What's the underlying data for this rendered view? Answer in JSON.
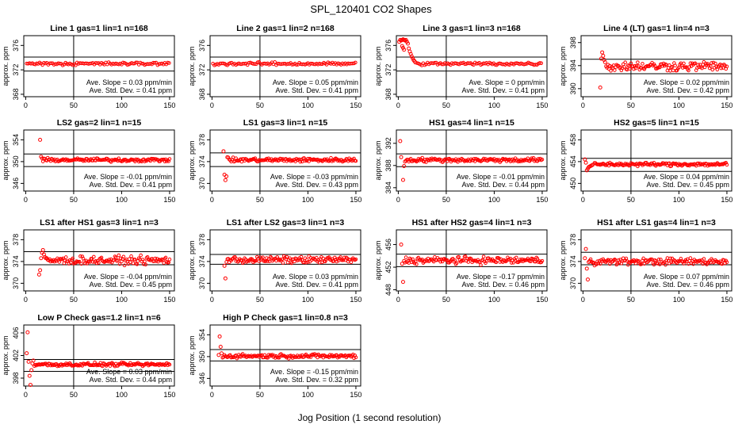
{
  "figure": {
    "title": "SPL_120401  CO2 Shapes",
    "xlabel": "Jog Position (1 second resolution)",
    "point_color": "#ff0000",
    "axis_color": "#000000"
  },
  "chart_data": [
    {
      "type": "scatter",
      "title": "Line 1 gas=1 lin=1 n=168",
      "ylabel": "approx. ppm",
      "xlim": [
        -2,
        155
      ],
      "xticks": [
        0,
        50,
        100,
        150
      ],
      "ylim": [
        367.6,
        377.6
      ],
      "yticks": [
        368,
        372,
        376
      ],
      "hlines": [
        371.8,
        374.1
      ],
      "vline": 50,
      "slope_text": "Ave. Slope =  0.03  ppm/min",
      "sd_text": "Ave. Std. Dev. =  0.41  ppm",
      "trace": {
        "x0": 1,
        "x1": 150,
        "step": 1.5,
        "base": 373.0,
        "noise": 0.12
      },
      "extra_points": []
    },
    {
      "type": "scatter",
      "title": "Line 2 gas=1 lin=2 n=168",
      "ylabel": "approx. ppm",
      "xlim": [
        -2,
        155
      ],
      "xticks": [
        0,
        50,
        100,
        150
      ],
      "ylim": [
        367.6,
        377.6
      ],
      "yticks": [
        368,
        372,
        376
      ],
      "hlines": [
        371.8,
        374.1
      ],
      "vline": 50,
      "slope_text": "Ave. Slope =  0.05  ppm/min",
      "sd_text": "Ave. Std. Dev. =  0.41  ppm",
      "trace": {
        "x0": 1,
        "x1": 150,
        "step": 1.5,
        "base": 373.0,
        "noise": 0.12
      },
      "extra_points": []
    },
    {
      "type": "scatter",
      "title": "Line 3 gas=1 lin=3 n=168",
      "ylabel": "approx. ppm",
      "xlim": [
        -2,
        155
      ],
      "xticks": [
        0,
        50,
        100,
        150
      ],
      "ylim": [
        367.6,
        377.6
      ],
      "yticks": [
        368,
        372,
        376
      ],
      "hlines": [
        371.8,
        374.1
      ],
      "vline": 50,
      "slope_text": "Ave. Slope =  0  ppm/min",
      "sd_text": "Ave. Std. Dev. =  0.41  ppm",
      "trace": {
        "x0": 20,
        "x1": 150,
        "step": 1.5,
        "base": 373.0,
        "noise": 0.12
      },
      "extra_points": [
        [
          1,
          376.6
        ],
        [
          2,
          376.9
        ],
        [
          3,
          376.8
        ],
        [
          4,
          376.9
        ],
        [
          5,
          377.0
        ],
        [
          6,
          376.9
        ],
        [
          7,
          376.8
        ],
        [
          8,
          376.9
        ],
        [
          9,
          376.6
        ],
        [
          10,
          376.3
        ],
        [
          4,
          375.9
        ],
        [
          5,
          375.6
        ],
        [
          6,
          375.3
        ],
        [
          11,
          375.5
        ],
        [
          12,
          375.0
        ],
        [
          13,
          374.6
        ],
        [
          14,
          374.2
        ],
        [
          15,
          373.9
        ],
        [
          16,
          373.6
        ],
        [
          17,
          373.4
        ],
        [
          18,
          373.2
        ]
      ]
    },
    {
      "type": "scatter",
      "title": "Line 4 (LT) gas=1 lin=4 n=3",
      "ylabel": "approx. ppm",
      "xlim": [
        -2,
        155
      ],
      "xticks": [
        0,
        50,
        100,
        150
      ],
      "ylim": [
        388.6,
        399.2
      ],
      "yticks": [
        390,
        394,
        398
      ],
      "hlines": [
        392.6,
        395.1
      ],
      "vline": 50,
      "slope_text": "Ave. Slope =  0.02  ppm/min",
      "sd_text": "Ave. Std. Dev. =  0.42  ppm",
      "trace": {
        "x0": 24,
        "x1": 150,
        "step": 1.0,
        "base": 393.9,
        "noise": 0.4
      },
      "extra_points": [
        [
          18,
          390.2
        ],
        [
          20,
          396.3
        ],
        [
          21,
          395.7
        ],
        [
          22,
          395.0
        ],
        [
          23,
          394.6
        ],
        [
          19,
          395.2
        ]
      ]
    },
    {
      "type": "scatter",
      "title": "LS2 gas=2 lin=1 n=15",
      "ylabel": "approx. ppm",
      "xlim": [
        -2,
        155
      ],
      "xticks": [
        0,
        50,
        100,
        150
      ],
      "ylim": [
        344.6,
        355.8
      ],
      "yticks": [
        346,
        350,
        354
      ],
      "hlines": [
        349.1,
        351.4
      ],
      "vline": 50,
      "slope_text": "Ave. Slope =  -0.01  ppm/min",
      "sd_text": "Ave. Std. Dev. =  0.41  ppm",
      "trace": {
        "x0": 17,
        "x1": 150,
        "step": 1.0,
        "base": 350.3,
        "noise": 0.16
      },
      "extra_points": [
        [
          15,
          354.0
        ],
        [
          16,
          350.9
        ]
      ]
    },
    {
      "type": "scatter",
      "title": "LS1 gas=3 lin=1 n=15",
      "ylabel": "approx. ppm",
      "xlim": [
        -2,
        155
      ],
      "xticks": [
        0,
        50,
        100,
        150
      ],
      "ylim": [
        368.6,
        379.8
      ],
      "yticks": [
        370,
        374,
        378
      ],
      "hlines": [
        373.1,
        375.6
      ],
      "vline": 50,
      "slope_text": "Ave. Slope =  -0.03  ppm/min",
      "sd_text": "Ave. Std. Dev. =  0.43  ppm",
      "trace": {
        "x0": 17,
        "x1": 150,
        "step": 1.0,
        "base": 374.3,
        "noise": 0.18
      },
      "extra_points": [
        [
          12,
          375.9
        ],
        [
          13,
          371.6
        ],
        [
          14,
          370.6
        ],
        [
          15,
          371.3
        ],
        [
          16,
          374.8
        ]
      ]
    },
    {
      "type": "scatter",
      "title": "HS1 gas=4 lin=1 n=15",
      "ylabel": "approx. ppm",
      "xlim": [
        -2,
        155
      ],
      "xticks": [
        0,
        50,
        100,
        150
      ],
      "ylim": [
        383.4,
        394.4
      ],
      "yticks": [
        384,
        388,
        392
      ],
      "hlines": [
        387.8,
        390.1
      ],
      "vline": 50,
      "slope_text": "Ave. Slope =  -0.01  ppm/min",
      "sd_text": "Ave. Std. Dev. =  0.44  ppm",
      "trace": {
        "x0": 8,
        "x1": 150,
        "step": 1.0,
        "base": 389.0,
        "noise": 0.18
      },
      "extra_points": [
        [
          2,
          392.4
        ],
        [
          3,
          389.5
        ],
        [
          5,
          385.4
        ],
        [
          6,
          387.9
        ],
        [
          7,
          388.7
        ]
      ]
    },
    {
      "type": "scatter",
      "title": "HS2 gas=5 lin=1 n=15",
      "ylabel": "approx. ppm",
      "xlim": [
        -2,
        155
      ],
      "xticks": [
        0,
        50,
        100,
        150
      ],
      "ylim": [
        448.6,
        459.8
      ],
      "yticks": [
        450,
        454,
        458
      ],
      "hlines": [
        452.2,
        454.6
      ],
      "vline": 50,
      "slope_text": "Ave. Slope =  0.04  ppm/min",
      "sd_text": "Ave. Std. Dev. =  0.45  ppm",
      "trace": {
        "x0": 12,
        "x1": 150,
        "step": 1.0,
        "base": 453.5,
        "noise": 0.16
      },
      "extra_points": [
        [
          2,
          454.4
        ],
        [
          3,
          453.8
        ],
        [
          4,
          452.4
        ],
        [
          5,
          452.7
        ],
        [
          6,
          453.0
        ],
        [
          7,
          453.1
        ],
        [
          8,
          453.2
        ],
        [
          9,
          453.3
        ],
        [
          10,
          453.4
        ]
      ]
    },
    {
      "type": "scatter",
      "title": "LS1 after HS1 gas=3 lin=1 n=3",
      "ylabel": "approx. ppm",
      "xlim": [
        -2,
        155
      ],
      "xticks": [
        0,
        50,
        100,
        150
      ],
      "ylim": [
        368.6,
        379.8
      ],
      "yticks": [
        370,
        374,
        378
      ],
      "hlines": [
        373.4,
        375.8
      ],
      "vline": 50,
      "slope_text": "Ave. Slope =  -0.04  ppm/min",
      "sd_text": "Ave. Std. Dev. =  0.45  ppm",
      "trace": {
        "x0": 22,
        "x1": 150,
        "step": 1.0,
        "base": 374.2,
        "noise": 0.35
      },
      "extra_points": [
        [
          14,
          371.6
        ],
        [
          15,
          372.4
        ],
        [
          16,
          374.6
        ],
        [
          17,
          375.6
        ],
        [
          18,
          376.1
        ],
        [
          19,
          375.3
        ],
        [
          20,
          374.8
        ],
        [
          21,
          374.6
        ]
      ]
    },
    {
      "type": "scatter",
      "title": "LS1 after LS2 gas=3 lin=1 n=3",
      "ylabel": "approx. ppm",
      "xlim": [
        -2,
        155
      ],
      "xticks": [
        0,
        50,
        100,
        150
      ],
      "ylim": [
        368.6,
        379.8
      ],
      "yticks": [
        370,
        374,
        378
      ],
      "hlines": [
        373.5,
        375.3
      ],
      "vline": 50,
      "slope_text": "Ave. Slope =  0.03  ppm/min",
      "sd_text": "Ave. Std. Dev. =  0.41  ppm",
      "trace": {
        "x0": 15,
        "x1": 150,
        "step": 1.0,
        "base": 374.3,
        "noise": 0.3
      },
      "extra_points": [
        [
          14,
          370.9
        ],
        [
          13,
          373.2
        ]
      ]
    },
    {
      "type": "scatter",
      "title": "HS1 after HS2 gas=4 lin=1 n=3",
      "ylabel": "approx. ppm",
      "xlim": [
        -2,
        155
      ],
      "xticks": [
        0,
        50,
        100,
        150
      ],
      "ylim": [
        447.8,
        458.6
      ],
      "yticks": [
        448,
        452,
        456
      ],
      "hlines": [
        452.1,
        454.3
      ],
      "vline": 50,
      "slope_text": "Ave. Slope =  -0.17  ppm/min",
      "sd_text": "Ave. Std. Dev. =  0.46  ppm",
      "trace": {
        "x0": 7,
        "x1": 150,
        "step": 1.0,
        "base": 453.2,
        "noise": 0.3
      },
      "extra_points": [
        [
          3,
          456.0
        ],
        [
          4,
          452.6
        ],
        [
          5,
          449.4
        ],
        [
          6,
          453.1
        ]
      ]
    },
    {
      "type": "scatter",
      "title": "HS1 after LS1 gas=4 lin=1 n=3",
      "ylabel": "approx. ppm",
      "xlim": [
        -2,
        155
      ],
      "xticks": [
        0,
        50,
        100,
        150
      ],
      "ylim": [
        368.6,
        379.8
      ],
      "yticks": [
        370,
        374,
        378
      ],
      "hlines": [
        373.4,
        375.7
      ],
      "vline": 50,
      "slope_text": "Ave. Slope =  0.07  ppm/min",
      "sd_text": "Ave. Std. Dev. =  0.46  ppm",
      "trace": {
        "x0": 8,
        "x1": 150,
        "step": 1.0,
        "base": 374.0,
        "noise": 0.3
      },
      "extra_points": [
        [
          2,
          374.6
        ],
        [
          3,
          376.3
        ],
        [
          4,
          372.7
        ],
        [
          5,
          370.7
        ],
        [
          6,
          373.9
        ],
        [
          7,
          374.1
        ]
      ]
    },
    {
      "type": "scatter",
      "title": "Low P Check gas=1.2 lin=1 n=6",
      "ylabel": "approx. ppm",
      "xlim": [
        -2,
        155
      ],
      "xticks": [
        0,
        50,
        100,
        150
      ],
      "ylim": [
        396.6,
        407.4
      ],
      "yticks": [
        398,
        402,
        406
      ],
      "hlines": [
        399.2,
        401.3
      ],
      "vline": 50,
      "slope_text": "Ave. Slope =  0.03  ppm/min",
      "sd_text": "Ave. Std. Dev. =  0.44  ppm",
      "trace": {
        "x0": 9,
        "x1": 150,
        "step": 1.0,
        "base": 400.4,
        "noise": 0.15
      },
      "extra_points": [
        [
          2,
          406.1
        ],
        [
          3,
          400.9
        ],
        [
          4,
          398.4
        ],
        [
          5,
          396.8
        ],
        [
          6,
          399.4
        ],
        [
          7,
          400.6
        ],
        [
          8,
          401.1
        ],
        [
          1,
          402.4
        ]
      ]
    },
    {
      "type": "scatter",
      "title": "High P Check gas=1 lin=0.8 n=3",
      "ylabel": "approx. ppm",
      "xlim": [
        -2,
        155
      ],
      "xticks": [
        0,
        50,
        100,
        150
      ],
      "ylim": [
        344.6,
        355.8
      ],
      "yticks": [
        346,
        350,
        354
      ],
      "hlines": [
        349.2,
        351.3
      ],
      "vline": 50,
      "slope_text": "Ave. Slope =  -0.15  ppm/min",
      "sd_text": "Ave. Std. Dev. =  0.32  ppm",
      "trace": {
        "x0": 11,
        "x1": 150,
        "step": 1.0,
        "base": 350.1,
        "noise": 0.18
      },
      "extra_points": [
        [
          7,
          350.3
        ],
        [
          8,
          353.7
        ],
        [
          9,
          351.8
        ],
        [
          10,
          350.6
        ]
      ]
    }
  ]
}
